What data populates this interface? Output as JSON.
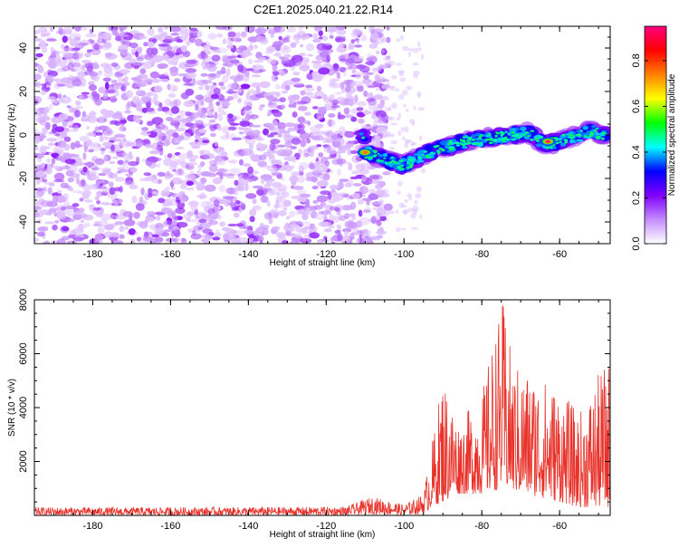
{
  "title": "C2E1.2025.040.21.22.R14",
  "chart_data": [
    {
      "type": "heatmap",
      "xlabel": "Height of straight line (km)",
      "ylabel": "Frequency (Hz)",
      "xlim": [
        -195,
        -47
      ],
      "ylim": [
        -50,
        50
      ],
      "x_ticks": [
        -180,
        -160,
        -140,
        -120,
        -100,
        -80,
        -60
      ],
      "y_ticks": [
        -40,
        -20,
        0,
        20,
        40
      ],
      "grid": false,
      "colorbar": {
        "label": "Normalized spectral amplitude",
        "range": [
          0.0,
          0.95
        ],
        "ticks": [
          0.0,
          0.2,
          0.4,
          0.6,
          0.8
        ],
        "colors": [
          "#ffffff",
          "#c48cff",
          "#8000ff",
          "#0000ff",
          "#00ffff",
          "#00ff00",
          "#ffff00",
          "#ff8000",
          "#ff0000",
          "#ff0080"
        ]
      },
      "noise_region": {
        "x": [
          -195,
          -107
        ],
        "y": [
          -50,
          50
        ],
        "amplitude_range": [
          0.05,
          0.2
        ]
      },
      "signal_track": [
        {
          "x": -110,
          "y": -8
        },
        {
          "x": -104,
          "y": -12
        },
        {
          "x": -100,
          "y": -14
        },
        {
          "x": -96,
          "y": -10
        },
        {
          "x": -92,
          "y": -7
        },
        {
          "x": -88,
          "y": -5
        },
        {
          "x": -84,
          "y": -3
        },
        {
          "x": -80,
          "y": -2
        },
        {
          "x": -76,
          "y": -1
        },
        {
          "x": -72,
          "y": 0
        },
        {
          "x": -68,
          "y": 1
        },
        {
          "x": -64,
          "y": -4
        },
        {
          "x": -60,
          "y": -3
        },
        {
          "x": -56,
          "y": -1
        },
        {
          "x": -52,
          "y": 2
        },
        {
          "x": -49,
          "y": 0
        }
      ],
      "peaks": [
        {
          "x": -110,
          "y": -8,
          "amplitude": 0.75
        },
        {
          "x": -63,
          "y": -3,
          "amplitude": 0.95
        }
      ]
    },
    {
      "type": "line",
      "xlabel": "Height of straight line (km)",
      "ylabel": "SNR (10 * v/v)",
      "xlim": [
        -195,
        -47
      ],
      "ylim": [
        0,
        8000
      ],
      "x_ticks": [
        -180,
        -160,
        -140,
        -120,
        -100,
        -80,
        -60
      ],
      "y_ticks": [
        2000,
        4000,
        6000,
        8000
      ],
      "grid": false,
      "series": [
        {
          "color": "#e8322a",
          "envelope": [
            {
              "x": -195,
              "low": 0,
              "high": 300
            },
            {
              "x": -160,
              "low": 0,
              "high": 300
            },
            {
              "x": -115,
              "low": 0,
              "high": 320
            },
            {
              "x": -108,
              "low": 50,
              "high": 700
            },
            {
              "x": -100,
              "low": 0,
              "high": 400
            },
            {
              "x": -95,
              "low": 50,
              "high": 800
            },
            {
              "x": -93,
              "low": 300,
              "high": 2500
            },
            {
              "x": -90,
              "low": 500,
              "high": 5300
            },
            {
              "x": -86,
              "low": 800,
              "high": 3500
            },
            {
              "x": -80,
              "low": 800,
              "high": 4500
            },
            {
              "x": -77,
              "low": 900,
              "high": 6600
            },
            {
              "x": -74.5,
              "low": 1000,
              "high": 8000
            },
            {
              "x": -72,
              "low": 900,
              "high": 5600
            },
            {
              "x": -66,
              "low": 700,
              "high": 5300
            },
            {
              "x": -60,
              "low": 500,
              "high": 4700
            },
            {
              "x": -55,
              "low": 300,
              "high": 3800
            },
            {
              "x": -48,
              "low": 300,
              "high": 5800
            }
          ]
        }
      ]
    }
  ]
}
